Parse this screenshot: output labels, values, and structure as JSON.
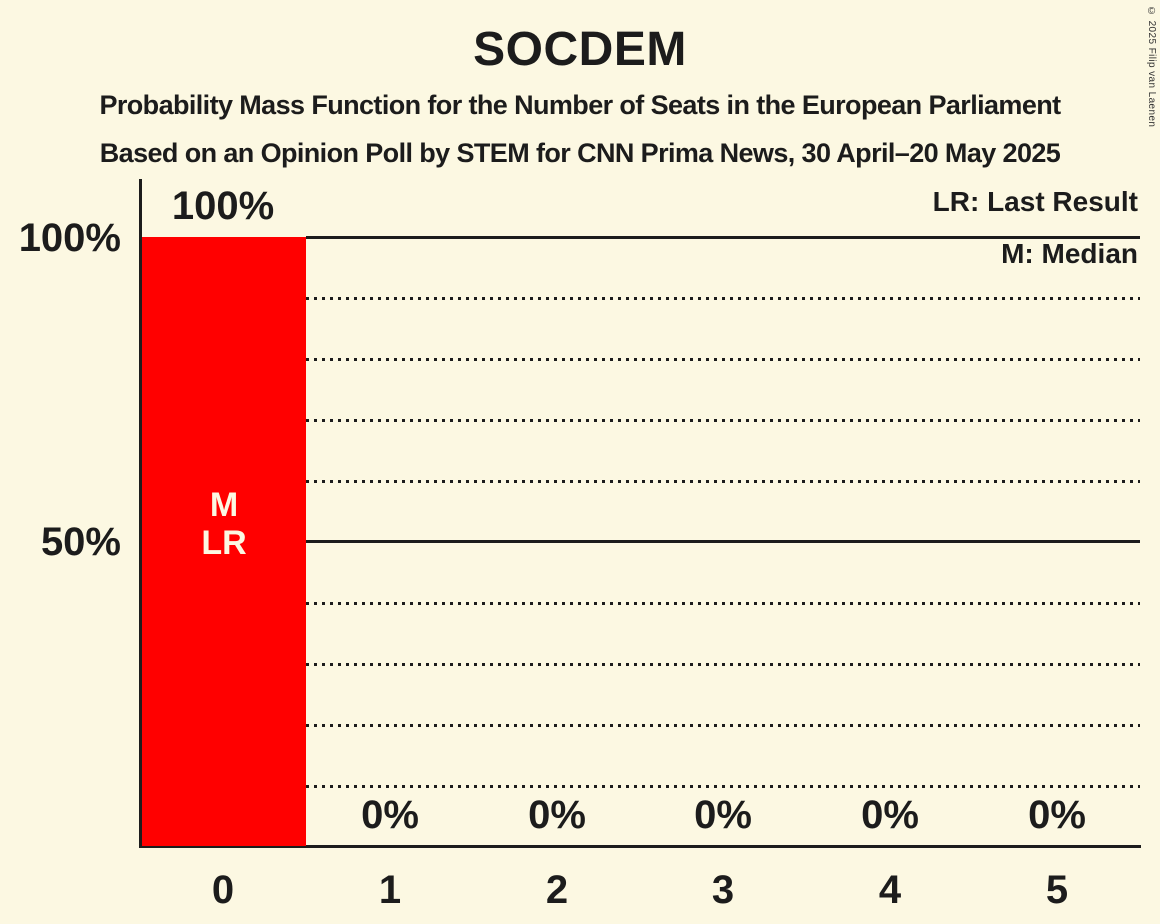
{
  "header": {
    "title": "SOCDEM",
    "subtitle1": "Probability Mass Function for the Number of Seats in the European Parliament",
    "subtitle2": "Based on an Opinion Poll by STEM for CNN Prima News, 30 April–20 May 2025"
  },
  "copyright": "© 2025 Filip van Laenen",
  "legend": {
    "lr": "LR: Last Result",
    "m": "M: Median"
  },
  "colors": {
    "background": "#FCF8E2",
    "bar": "#FF0000",
    "text": "#1C1C1C",
    "bar_annotation_text": "#FCF8E2"
  },
  "chart_data": {
    "type": "bar",
    "title": "SOCDEM",
    "categories": [
      "0",
      "1",
      "2",
      "3",
      "4",
      "5"
    ],
    "values": [
      100,
      0,
      0,
      0,
      0,
      0
    ],
    "value_labels": [
      "100%",
      "0%",
      "0%",
      "0%",
      "0%",
      "0%"
    ],
    "y_tick_labels": [
      "100%",
      "50%"
    ],
    "ylim": [
      0,
      100
    ],
    "grid": "horizontal: solid lines at 100% and 50%, dotted lines every 10%",
    "legend_position": "top-right",
    "bar_annotations": [
      "M",
      "LR"
    ],
    "median_seats": "0",
    "last_result_seats": "0"
  }
}
